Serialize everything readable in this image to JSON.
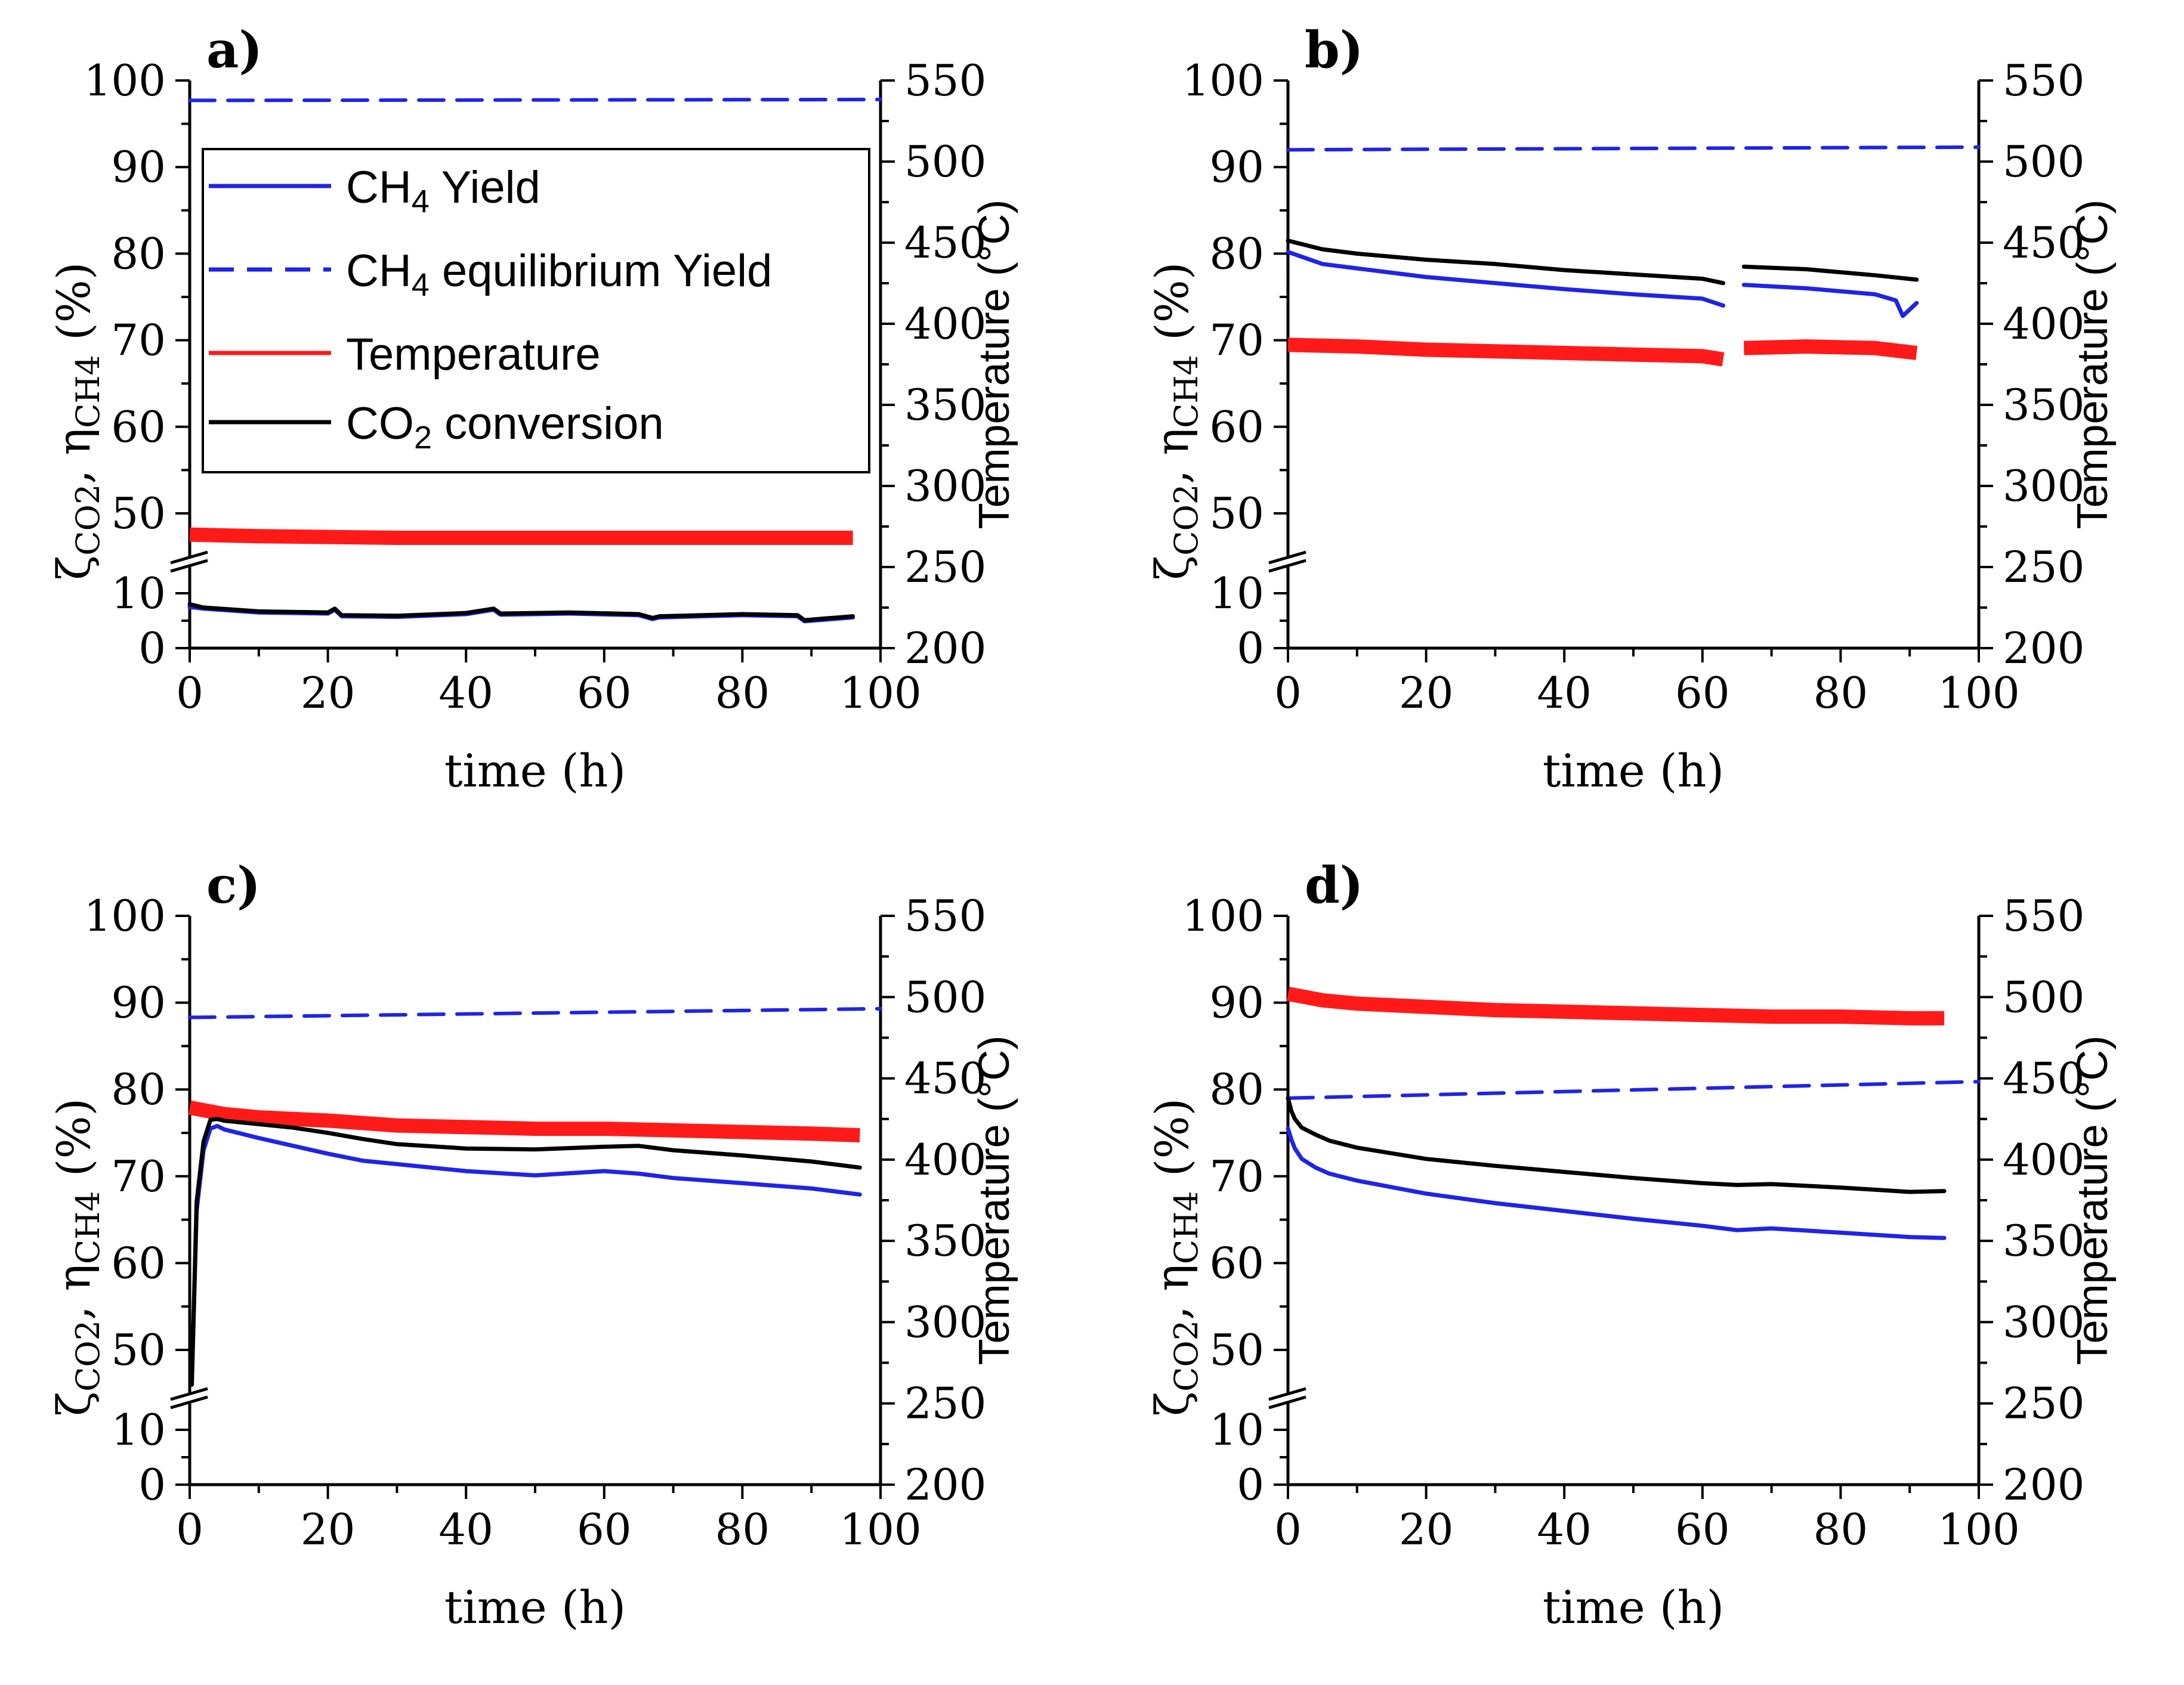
{
  "colors": {
    "ch4_yield": "#1f24e6",
    "equilibrium": "#1f24e6",
    "temperature": "#ff1a1a",
    "co2_conversion": "#000000",
    "axis": "#000000"
  },
  "legend": {
    "yield_main": "CH",
    "yield_sub": "4",
    "yield_tail": " Yield",
    "eq_main": "CH",
    "eq_sub": "4",
    "eq_tail": " equilibrium Yield",
    "temperature": "Temperature",
    "co2_main": "CO",
    "co2_sub": "2",
    "co2_tail": " conversion"
  },
  "axis_titles": {
    "x": "time (h)",
    "y_left_zeta": "ζ",
    "y_left_zeta_sub": "CO2",
    "y_left_sep": ", ",
    "y_left_eta": "η",
    "y_left_eta_sub": "CH4",
    "y_left_tail": " (%)",
    "y_right": "Temperature (°C)"
  },
  "ticks": {
    "x": [
      "0",
      "20",
      "40",
      "60",
      "80",
      "100"
    ],
    "y_left": [
      "0",
      "10",
      "50",
      "60",
      "70",
      "80",
      "90",
      "100"
    ],
    "y_right": [
      "200",
      "250",
      "300",
      "350",
      "400",
      "450",
      "500",
      "550"
    ]
  },
  "chart_data": [
    {
      "type": "line",
      "panel_label": "a)",
      "title": "",
      "xlabel": "time (h)",
      "ylabel": "ζCO2, ηCH4 (%)",
      "y2label": "Temperature (°C)",
      "xlim": [
        0,
        100
      ],
      "ylim": [
        0,
        100
      ],
      "y_axis_break": [
        12,
        45
      ],
      "y2lim": [
        200,
        550
      ],
      "legend_position": "top-left",
      "series": [
        {
          "name": "CH4 Yield",
          "axis": "left",
          "style": "solid",
          "x": [
            0,
            2,
            10,
            20,
            21,
            22,
            30,
            40,
            44,
            45,
            55,
            65,
            67,
            68,
            80,
            88,
            89,
            92,
            96
          ],
          "values": [
            7.5,
            7.2,
            6.5,
            6.3,
            7.0,
            5.8,
            5.7,
            6.2,
            7.0,
            6.1,
            6.3,
            6.0,
            5.3,
            5.6,
            6.0,
            5.8,
            4.9,
            5.2,
            5.6
          ]
        },
        {
          "name": "CH4 equilibrium Yield",
          "axis": "left",
          "style": "dashed",
          "x": [
            0,
            100
          ],
          "values": [
            97.7,
            97.8
          ]
        },
        {
          "name": "Temperature",
          "axis": "right",
          "style": "solid",
          "x": [
            0,
            10,
            30,
            50,
            70,
            90,
            96
          ],
          "values": [
            270,
            269,
            268,
            268,
            268,
            268,
            268
          ]
        },
        {
          "name": "CO2 conversion",
          "axis": "left",
          "style": "solid",
          "x": [
            0,
            2,
            10,
            20,
            21,
            22,
            30,
            40,
            44,
            45,
            55,
            65,
            67,
            68,
            80,
            88,
            89,
            92,
            96
          ],
          "values": [
            8.0,
            7.4,
            6.7,
            6.5,
            7.2,
            6.0,
            5.9,
            6.4,
            7.2,
            6.3,
            6.5,
            6.2,
            5.5,
            5.8,
            6.2,
            6.0,
            5.1,
            5.4,
            5.8
          ]
        }
      ]
    },
    {
      "type": "line",
      "panel_label": "b)",
      "title": "",
      "xlabel": "time (h)",
      "ylabel": "ζCO2, ηCH4 (%)",
      "y2label": "Temperature (°C)",
      "xlim": [
        0,
        100
      ],
      "ylim": [
        0,
        100
      ],
      "y_axis_break": [
        12,
        45
      ],
      "y2lim": [
        200,
        550
      ],
      "series": [
        {
          "name": "CH4 Yield",
          "axis": "left",
          "style": "solid",
          "x": [
            0,
            5,
            10,
            20,
            30,
            40,
            50,
            60,
            63,
            66,
            75,
            85,
            88,
            89,
            91
          ],
          "values": [
            80.2,
            78.8,
            78.3,
            77.3,
            76.6,
            75.9,
            75.3,
            74.8,
            74.0,
            76.4,
            76.0,
            75.3,
            74.6,
            72.8,
            74.3
          ]
        },
        {
          "name": "CH4 equilibrium Yield",
          "axis": "left",
          "style": "dashed",
          "x": [
            0,
            100
          ],
          "values": [
            92.0,
            92.3
          ]
        },
        {
          "name": "Temperature",
          "axis": "right",
          "style": "solid",
          "x": [
            0,
            10,
            20,
            30,
            40,
            50,
            60,
            63,
            66,
            75,
            85,
            91
          ],
          "values": [
            387,
            386,
            384,
            383,
            382,
            381,
            380,
            378,
            385,
            386,
            385,
            382
          ]
        },
        {
          "name": "CO2 conversion",
          "axis": "left",
          "style": "solid",
          "x": [
            0,
            5,
            10,
            20,
            30,
            40,
            50,
            60,
            63,
            66,
            75,
            85,
            91
          ],
          "values": [
            81.5,
            80.5,
            80.0,
            79.3,
            78.8,
            78.1,
            77.6,
            77.1,
            76.6,
            78.5,
            78.2,
            77.5,
            77.0
          ]
        }
      ]
    },
    {
      "type": "line",
      "panel_label": "c)",
      "title": "",
      "xlabel": "time (h)",
      "ylabel": "ζCO2, ηCH4 (%)",
      "y2label": "Temperature (°C)",
      "xlim": [
        0,
        100
      ],
      "ylim": [
        0,
        100
      ],
      "y_axis_break": [
        12,
        45
      ],
      "y2lim": [
        200,
        550
      ],
      "series": [
        {
          "name": "CH4 Yield",
          "axis": "left",
          "style": "solid",
          "x": [
            0.3,
            1,
            2,
            3,
            4,
            5,
            10,
            15,
            20,
            25,
            30,
            40,
            50,
            60,
            65,
            70,
            80,
            90,
            97
          ],
          "values": [
            46,
            66,
            73,
            75.5,
            75.8,
            75.4,
            74.4,
            73.5,
            72.6,
            71.8,
            71.4,
            70.6,
            70.1,
            70.6,
            70.3,
            69.8,
            69.2,
            68.6,
            67.9
          ]
        },
        {
          "name": "CH4 equilibrium Yield",
          "axis": "left",
          "style": "dashed",
          "x": [
            0,
            100
          ],
          "values": [
            88.3,
            89.3
          ]
        },
        {
          "name": "Temperature",
          "axis": "right",
          "style": "solid",
          "x": [
            0,
            5,
            10,
            20,
            30,
            40,
            50,
            60,
            70,
            80,
            90,
            97
          ],
          "values": [
            432,
            428,
            426,
            424,
            421,
            420,
            419,
            419,
            418,
            417,
            416,
            415
          ]
        },
        {
          "name": "CO2 conversion",
          "axis": "left",
          "style": "solid",
          "x": [
            0.3,
            1,
            2,
            3,
            4,
            5,
            10,
            15,
            20,
            25,
            30,
            40,
            50,
            60,
            65,
            70,
            80,
            90,
            97
          ],
          "values": [
            46,
            67,
            74,
            76.5,
            76.6,
            76.4,
            76.0,
            75.6,
            75.0,
            74.3,
            73.7,
            73.2,
            73.1,
            73.4,
            73.5,
            73.0,
            72.4,
            71.7,
            71.0
          ]
        }
      ]
    },
    {
      "type": "line",
      "panel_label": "d)",
      "title": "",
      "xlabel": "time (h)",
      "ylabel": "ζCO2, ηCH4 (%)",
      "y2label": "Temperature (°C)",
      "xlim": [
        0,
        100
      ],
      "ylim": [
        0,
        100
      ],
      "y_axis_break": [
        12,
        45
      ],
      "y2lim": [
        200,
        550
      ],
      "series": [
        {
          "name": "CH4 Yield",
          "axis": "left",
          "style": "solid",
          "x": [
            0,
            0.5,
            1,
            2,
            4,
            6,
            10,
            20,
            30,
            40,
            50,
            60,
            65,
            70,
            80,
            90,
            95
          ],
          "values": [
            75.5,
            74.2,
            73.2,
            72.0,
            71.0,
            70.3,
            69.5,
            68.0,
            66.9,
            66.0,
            65.1,
            64.3,
            63.8,
            64.0,
            63.5,
            63.0,
            62.9
          ]
        },
        {
          "name": "CH4 equilibrium Yield",
          "axis": "left",
          "style": "dashed",
          "x": [
            0,
            100
          ],
          "values": [
            79.0,
            80.9
          ]
        },
        {
          "name": "Temperature",
          "axis": "right",
          "style": "solid",
          "x": [
            0,
            5,
            10,
            20,
            30,
            40,
            50,
            60,
            70,
            80,
            90,
            95
          ],
          "values": [
            502,
            498,
            496,
            494,
            492,
            491,
            490,
            489,
            488,
            488,
            487,
            487
          ]
        },
        {
          "name": "CO2 conversion",
          "axis": "left",
          "style": "solid",
          "x": [
            0,
            0.5,
            1,
            2,
            4,
            6,
            10,
            20,
            30,
            40,
            50,
            60,
            65,
            70,
            80,
            90,
            95
          ],
          "values": [
            79.0,
            77.5,
            76.6,
            75.6,
            74.8,
            74.1,
            73.3,
            72.0,
            71.2,
            70.5,
            69.8,
            69.2,
            69.0,
            69.1,
            68.7,
            68.2,
            68.3
          ]
        }
      ]
    }
  ]
}
